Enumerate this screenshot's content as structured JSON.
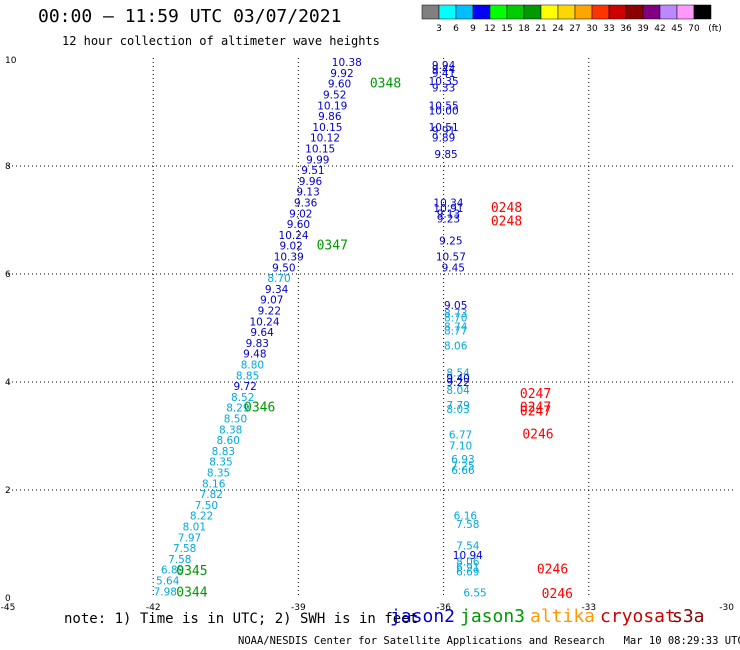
{
  "header": {
    "title": "00:00 – 11:59 UTC 03/07/2021",
    "subtitle": "12 hour collection of altimeter wave heights"
  },
  "colorbar": {
    "ticks": [
      "3",
      "6",
      "9",
      "12",
      "15",
      "18",
      "21",
      "24",
      "27",
      "30",
      "33",
      "36",
      "39",
      "42",
      "45",
      "70"
    ],
    "unit": "(ft)",
    "colors": [
      "#808080",
      "#00ffff",
      "#00bfff",
      "#0000ff",
      "#00ff00",
      "#00cc00",
      "#009900",
      "#ffff00",
      "#ffd700",
      "#ffa500",
      "#ff3300",
      "#cc0000",
      "#8b0000",
      "#800080",
      "#bb88ff",
      "#ff99ff",
      "#000000"
    ]
  },
  "footer": {
    "note": "note: 1) Time is in UTC; 2) SWH is in feet",
    "credit": "NOAA/NESDIS Center for Satellite Applications and Research   Mar 10 08:29:33 UTC 2021",
    "satellites": [
      {
        "name": "jason2",
        "color": "#0000cc"
      },
      {
        "name": "jason3",
        "color": "#009900"
      },
      {
        "name": "altika",
        "color": "#ff9900"
      },
      {
        "name": "cryosat",
        "color": "#cc0000"
      },
      {
        "name": "s3a",
        "color": "#8b0000"
      }
    ]
  },
  "chart_data": {
    "type": "scatter",
    "title": "12 hour collection of altimeter wave heights",
    "xlim": [
      -45,
      -30
    ],
    "ylim": [
      0,
      10
    ],
    "x_ticks": [
      "-45",
      "-42",
      "-39",
      "-36",
      "-33",
      "-30"
    ],
    "y_ticks": [
      "0",
      "2",
      "4",
      "6",
      "8",
      "10"
    ],
    "grid": true,
    "value_colors": {
      "light": "#00aadd",
      "dark": "#0000cc"
    },
    "series": [
      {
        "name": "jason2",
        "points": [
          {
            "x": -41.75,
            "y": 0.05,
            "v": "7.98",
            "c": "light"
          },
          {
            "x": -41.7,
            "y": 0.25,
            "v": "5.64",
            "c": "light"
          },
          {
            "x": -41.6,
            "y": 0.45,
            "v": "6.89",
            "c": "light"
          },
          {
            "x": -41.45,
            "y": 0.65,
            "v": "7.58",
            "c": "light"
          },
          {
            "x": -41.35,
            "y": 0.85,
            "v": "7.58",
            "c": "light"
          },
          {
            "x": -41.25,
            "y": 1.05,
            "v": "7.97",
            "c": "light"
          },
          {
            "x": -41.15,
            "y": 1.25,
            "v": "8.01",
            "c": "light"
          },
          {
            "x": -41.0,
            "y": 1.45,
            "v": "8.22",
            "c": "light"
          },
          {
            "x": -40.9,
            "y": 1.65,
            "v": "7.50",
            "c": "light"
          },
          {
            "x": -40.8,
            "y": 1.85,
            "v": "7.82",
            "c": "light"
          },
          {
            "x": -40.75,
            "y": 2.05,
            "v": "8.16",
            "c": "light"
          },
          {
            "x": -40.65,
            "y": 2.25,
            "v": "8.35",
            "c": "light"
          },
          {
            "x": -40.6,
            "y": 2.45,
            "v": "8.35",
            "c": "light"
          },
          {
            "x": -40.55,
            "y": 2.65,
            "v": "8.83",
            "c": "light"
          },
          {
            "x": -40.45,
            "y": 2.85,
            "v": "8.60",
            "c": "light"
          },
          {
            "x": -40.4,
            "y": 3.05,
            "v": "8.38",
            "c": "light"
          },
          {
            "x": -40.3,
            "y": 3.25,
            "v": "8.50",
            "c": "light"
          },
          {
            "x": -40.25,
            "y": 3.45,
            "v": "8.29",
            "c": "light"
          },
          {
            "x": -40.15,
            "y": 3.65,
            "v": "8.52",
            "c": "light"
          },
          {
            "x": -40.1,
            "y": 3.85,
            "v": "9.72",
            "c": "dark"
          },
          {
            "x": -40.05,
            "y": 4.05,
            "v": "8.85",
            "c": "light"
          },
          {
            "x": -39.95,
            "y": 4.25,
            "v": "8.80",
            "c": "light"
          },
          {
            "x": -39.9,
            "y": 4.45,
            "v": "9.48",
            "c": "dark"
          },
          {
            "x": -39.85,
            "y": 4.65,
            "v": "9.83",
            "c": "dark"
          },
          {
            "x": -39.75,
            "y": 4.85,
            "v": "9.64",
            "c": "dark"
          },
          {
            "x": -39.7,
            "y": 5.05,
            "v": "10.24",
            "c": "dark"
          },
          {
            "x": -39.6,
            "y": 5.25,
            "v": "9.22",
            "c": "dark"
          },
          {
            "x": -39.55,
            "y": 5.45,
            "v": "9.07",
            "c": "dark"
          },
          {
            "x": -39.45,
            "y": 5.65,
            "v": "9.34",
            "c": "dark"
          },
          {
            "x": -39.4,
            "y": 5.85,
            "v": "8.70",
            "c": "light"
          },
          {
            "x": -39.3,
            "y": 6.05,
            "v": "9.50",
            "c": "dark"
          },
          {
            "x": -39.2,
            "y": 6.25,
            "v": "10.39",
            "c": "dark"
          },
          {
            "x": -39.15,
            "y": 6.45,
            "v": "9.02",
            "c": "dark"
          },
          {
            "x": -39.1,
            "y": 6.65,
            "v": "10.24",
            "c": "dark"
          },
          {
            "x": -39.0,
            "y": 6.85,
            "v": "9.60",
            "c": "dark"
          },
          {
            "x": -38.95,
            "y": 7.05,
            "v": "9.02",
            "c": "dark"
          },
          {
            "x": -38.85,
            "y": 7.25,
            "v": "9.36",
            "c": "dark"
          },
          {
            "x": -38.8,
            "y": 7.45,
            "v": "9.13",
            "c": "dark"
          },
          {
            "x": -38.75,
            "y": 7.65,
            "v": "9.96",
            "c": "dark"
          },
          {
            "x": -38.7,
            "y": 7.85,
            "v": "9.51",
            "c": "dark"
          },
          {
            "x": -38.6,
            "y": 8.05,
            "v": "9.99",
            "c": "dark"
          },
          {
            "x": -38.55,
            "y": 8.25,
            "v": "10.15",
            "c": "dark"
          },
          {
            "x": -38.45,
            "y": 8.45,
            "v": "10.12",
            "c": "dark"
          },
          {
            "x": -38.4,
            "y": 8.65,
            "v": "10.15",
            "c": "dark"
          },
          {
            "x": -38.35,
            "y": 8.85,
            "v": "9.86",
            "c": "dark"
          },
          {
            "x": -38.3,
            "y": 9.05,
            "v": "10.19",
            "c": "dark"
          },
          {
            "x": -38.25,
            "y": 9.25,
            "v": "9.52",
            "c": "dark"
          },
          {
            "x": -38.15,
            "y": 9.45,
            "v": "9.60",
            "c": "dark"
          },
          {
            "x": -38.1,
            "y": 9.65,
            "v": "9.92",
            "c": "dark"
          },
          {
            "x": -38.0,
            "y": 9.85,
            "v": "10.38",
            "c": "dark"
          }
        ]
      },
      {
        "name": "jason3",
        "points": [
          {
            "x": -36.0,
            "y": 9.8,
            "v": "9.94",
            "c": "dark"
          },
          {
            "x": -36.0,
            "y": 9.72,
            "v": "9.44",
            "c": "dark"
          },
          {
            "x": -36.0,
            "y": 9.65,
            "v": "9.41",
            "c": "dark"
          },
          {
            "x": -36.0,
            "y": 9.5,
            "v": "10.35",
            "c": "dark"
          },
          {
            "x": -36.0,
            "y": 9.38,
            "v": "9.33",
            "c": "dark"
          },
          {
            "x": -36.0,
            "y": 9.05,
            "v": "10.55",
            "c": "dark"
          },
          {
            "x": -36.0,
            "y": 8.95,
            "v": "10.00",
            "c": "dark"
          },
          {
            "x": -36.0,
            "y": 8.65,
            "v": "10.51",
            "c": "dark"
          },
          {
            "x": -36.0,
            "y": 8.58,
            "v": "9.91",
            "c": "dark"
          },
          {
            "x": -36.0,
            "y": 8.45,
            "v": "9.89",
            "c": "dark"
          },
          {
            "x": -35.95,
            "y": 8.15,
            "v": "9.85",
            "c": "dark"
          },
          {
            "x": -35.9,
            "y": 7.25,
            "v": "10.34",
            "c": "dark"
          },
          {
            "x": -35.9,
            "y": 7.15,
            "v": "10.91",
            "c": "dark"
          },
          {
            "x": -35.9,
            "y": 7.05,
            "v": "9.13",
            "c": "dark"
          },
          {
            "x": -35.9,
            "y": 6.95,
            "v": "9.23",
            "c": "dark"
          },
          {
            "x": -35.85,
            "y": 6.55,
            "v": "9.25",
            "c": "dark"
          },
          {
            "x": -35.85,
            "y": 6.25,
            "v": "10.57",
            "c": "dark"
          },
          {
            "x": -35.8,
            "y": 6.05,
            "v": "9.45",
            "c": "dark"
          },
          {
            "x": -35.75,
            "y": 5.35,
            "v": "9.05",
            "c": "dark"
          },
          {
            "x": -35.75,
            "y": 5.2,
            "v": "8.73",
            "c": "light"
          },
          {
            "x": -35.75,
            "y": 5.12,
            "v": "8.70",
            "c": "light"
          },
          {
            "x": -35.75,
            "y": 4.95,
            "v": "8.74",
            "c": "light"
          },
          {
            "x": -35.75,
            "y": 4.88,
            "v": "8.77",
            "c": "light"
          },
          {
            "x": -35.75,
            "y": 4.6,
            "v": "8.06",
            "c": "light"
          },
          {
            "x": -35.7,
            "y": 4.1,
            "v": "8.54",
            "c": "light"
          },
          {
            "x": -35.7,
            "y": 4.0,
            "v": "9.40",
            "c": "dark"
          },
          {
            "x": -35.7,
            "y": 3.93,
            "v": "9.22",
            "c": "dark"
          },
          {
            "x": -35.7,
            "y": 3.78,
            "v": "8.04",
            "c": "light"
          },
          {
            "x": -35.7,
            "y": 3.5,
            "v": "7.79",
            "c": "light"
          },
          {
            "x": -35.7,
            "y": 3.43,
            "v": "8.03",
            "c": "light"
          },
          {
            "x": -35.65,
            "y": 2.95,
            "v": "6.77",
            "c": "light"
          },
          {
            "x": -35.65,
            "y": 2.75,
            "v": "7.10",
            "c": "light"
          },
          {
            "x": -35.6,
            "y": 2.5,
            "v": "6.93",
            "c": "light"
          },
          {
            "x": -35.6,
            "y": 2.38,
            "v": "7.25",
            "c": "light"
          },
          {
            "x": -35.6,
            "y": 2.3,
            "v": "6.66",
            "c": "light"
          },
          {
            "x": -35.55,
            "y": 1.45,
            "v": "6.16",
            "c": "light"
          },
          {
            "x": -35.5,
            "y": 1.3,
            "v": "7.58",
            "c": "light"
          },
          {
            "x": -35.5,
            "y": 0.9,
            "v": "7.54",
            "c": "light"
          },
          {
            "x": -35.5,
            "y": 0.72,
            "v": "10.94",
            "c": "dark"
          },
          {
            "x": -35.5,
            "y": 0.6,
            "v": "8.06",
            "c": "light"
          },
          {
            "x": -35.5,
            "y": 0.5,
            "v": "6.91",
            "c": "light"
          },
          {
            "x": -35.5,
            "y": 0.42,
            "v": "6.69",
            "c": "light"
          },
          {
            "x": -35.35,
            "y": 0.03,
            "v": "6.55",
            "c": "light"
          }
        ]
      }
    ],
    "time_labels": [
      {
        "x": -41.2,
        "y": 0.03,
        "t": "0344",
        "color": "#009900"
      },
      {
        "x": -41.2,
        "y": 0.43,
        "t": "0345",
        "color": "#009900"
      },
      {
        "x": -39.8,
        "y": 3.45,
        "t": "0346",
        "color": "#009900"
      },
      {
        "x": -38.3,
        "y": 6.45,
        "t": "0347",
        "color": "#009900"
      },
      {
        "x": -37.2,
        "y": 9.45,
        "t": "0348",
        "color": "#009900"
      },
      {
        "x": -34.7,
        "y": 7.15,
        "t": "0248",
        "color": "#ff0000"
      },
      {
        "x": -34.7,
        "y": 6.9,
        "t": "0248",
        "color": "#ff0000"
      },
      {
        "x": -34.1,
        "y": 3.7,
        "t": "0247",
        "color": "#ff0000"
      },
      {
        "x": -34.1,
        "y": 3.45,
        "t": "0247",
        "color": "#ff0000"
      },
      {
        "x": -34.1,
        "y": 3.38,
        "t": "0247",
        "color": "#ff0000"
      },
      {
        "x": -34.05,
        "y": 2.95,
        "t": "0246",
        "color": "#ff0000"
      },
      {
        "x": -33.75,
        "y": 0.45,
        "t": "0246",
        "color": "#ff0000"
      },
      {
        "x": -33.65,
        "y": 0.0,
        "t": "0246",
        "color": "#ff0000"
      }
    ]
  }
}
